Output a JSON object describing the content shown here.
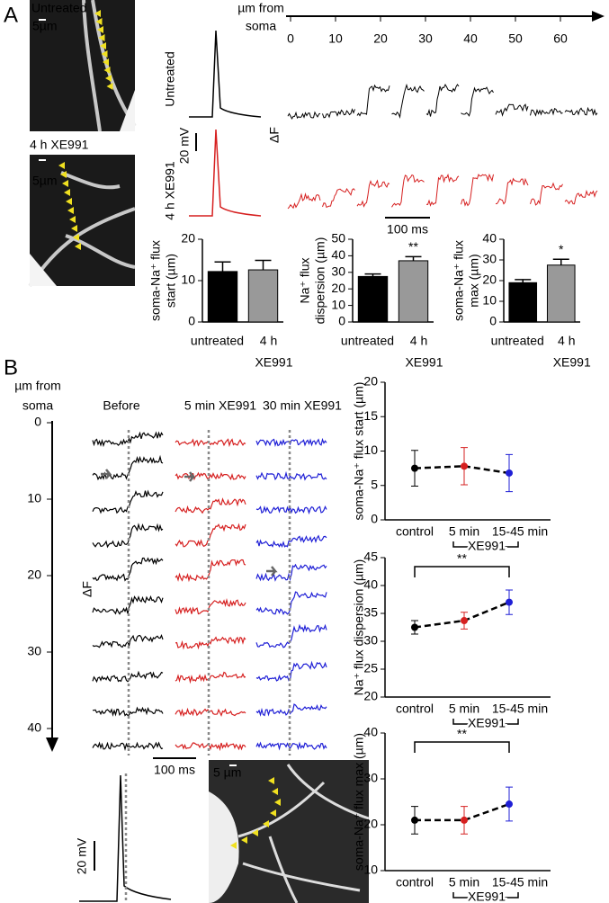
{
  "panel_a": {
    "label": "A",
    "images": [
      {
        "label": "Untreated",
        "scale": "5µm",
        "label_color": "#000000"
      },
      {
        "label": "4 h XE991",
        "scale": "5µm",
        "label_color": "#d62020"
      }
    ],
    "distance_axis": {
      "title": [
        "µm from",
        "soma"
      ],
      "ticks": [
        0,
        10,
        20,
        30,
        40,
        50,
        60
      ]
    },
    "traces": [
      {
        "label": "Untreated",
        "color": "#000000"
      },
      {
        "label": "4 h XE991",
        "color": "#d62020"
      }
    ],
    "voltage_scale": "20 mV",
    "fluorescence_label": "ΔF",
    "time_scale": "100 ms",
    "bar_charts": [
      {
        "type": "bar",
        "ylabel": [
          "soma-Na⁺ flux",
          "start (µm)"
        ],
        "categories": [
          "untreated",
          "4 h"
        ],
        "category_note": "XE991",
        "values": [
          12.2,
          12.6
        ],
        "errors": [
          2.3,
          2.3
        ],
        "colors": [
          "#000000",
          "#999999"
        ],
        "ylim": [
          0,
          20
        ],
        "yticks": [
          0,
          10,
          20
        ]
      },
      {
        "type": "bar",
        "ylabel": [
          "Na⁺ flux",
          "dispersion (µm)"
        ],
        "categories": [
          "untreated",
          "4 h"
        ],
        "category_note": "XE991",
        "values": [
          27.5,
          37
        ],
        "errors": [
          1.5,
          2.5
        ],
        "colors": [
          "#000000",
          "#999999"
        ],
        "ylim": [
          0,
          50
        ],
        "yticks": [
          0,
          10,
          20,
          30,
          40,
          50
        ],
        "significance": "**"
      },
      {
        "type": "bar",
        "ylabel": [
          "soma-Na⁺ flux",
          "max (µm)"
        ],
        "categories": [
          "untreated",
          "4 h"
        ],
        "category_note": "XE991",
        "values": [
          19,
          27.5
        ],
        "errors": [
          1.5,
          2.8
        ],
        "colors": [
          "#000000",
          "#999999"
        ],
        "ylim": [
          0,
          40
        ],
        "yticks": [
          0,
          10,
          20,
          30,
          40
        ],
        "significance": "*"
      }
    ]
  },
  "panel_b": {
    "label": "B",
    "distance_axis": {
      "title": [
        "µm from",
        "soma"
      ],
      "ticks": [
        0,
        10,
        20,
        30,
        40
      ]
    },
    "columns": [
      {
        "label": "Before",
        "color": "#000000"
      },
      {
        "label": "5 min XE991",
        "color": "#d62020"
      },
      {
        "label": "30 min XE991",
        "color": "#1f1fd6"
      }
    ],
    "fluorescence_label": "ΔF",
    "time_scale": "100 ms",
    "voltage_scale": "20 mV",
    "image_scale": "5 µm",
    "line_charts": [
      {
        "type": "line",
        "ylabel": "soma-Na⁺ flux start (µm)",
        "categories": [
          "control",
          "5 min",
          "15-45 min"
        ],
        "group_label": "XE991",
        "values": [
          7.5,
          7.8,
          6.8
        ],
        "errors": [
          2.6,
          2.7,
          2.7
        ],
        "colors": [
          "#000000",
          "#d62020",
          "#1f1fd6"
        ],
        "ylim": [
          0,
          20
        ],
        "yticks": [
          0,
          5,
          10,
          15,
          20
        ]
      },
      {
        "type": "line",
        "ylabel": "Na⁺ flux dispersion (µm)",
        "categories": [
          "control",
          "5 min",
          "15-45 min"
        ],
        "group_label": "XE991",
        "values": [
          32.5,
          33.7,
          37
        ],
        "errors": [
          1.2,
          1.5,
          2.2
        ],
        "colors": [
          "#000000",
          "#d62020",
          "#1f1fd6"
        ],
        "ylim": [
          20,
          45
        ],
        "yticks": [
          20,
          25,
          30,
          35,
          40,
          45
        ],
        "significance": "**"
      },
      {
        "type": "line",
        "ylabel": "soma-Na⁺ flux max (µm)",
        "categories": [
          "control",
          "5 min",
          "15-45 min"
        ],
        "group_label": "XE991",
        "values": [
          21,
          21,
          24.5
        ],
        "errors": [
          3,
          3,
          3.7
        ],
        "colors": [
          "#000000",
          "#d62020",
          "#1f1fd6"
        ],
        "ylim": [
          10,
          40
        ],
        "yticks": [
          10,
          20,
          30,
          40
        ],
        "significance": "**"
      }
    ]
  }
}
